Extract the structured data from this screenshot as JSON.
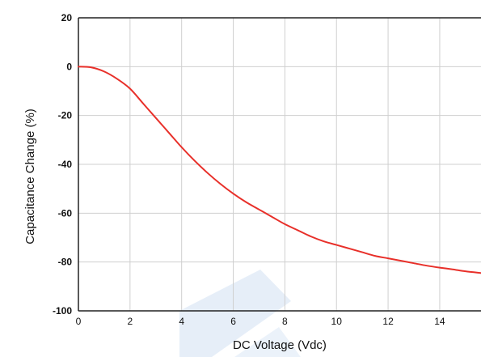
{
  "chart_data": {
    "type": "line",
    "title": "",
    "xlabel": "DC Voltage (Vdc)",
    "ylabel": "Capacitance Change (%)",
    "xlim": [
      0,
      15.6
    ],
    "ylim": [
      -100,
      20
    ],
    "xticks": [
      "0",
      "2",
      "4",
      "6",
      "8",
      "10",
      "12",
      "14"
    ],
    "yticks": [
      "20",
      "0",
      "-20",
      "-40",
      "-60",
      "-80",
      "-100"
    ],
    "grid": true,
    "legend": "none",
    "series": [
      {
        "color": "#e8302a",
        "x": [
          0,
          0.5,
          1,
          1.5,
          2,
          2.5,
          3,
          3.5,
          4,
          4.5,
          5,
          5.5,
          6,
          6.5,
          7,
          7.5,
          8,
          8.5,
          9,
          9.5,
          10,
          10.5,
          11,
          11.5,
          12,
          12.5,
          13,
          13.5,
          14,
          14.5,
          15,
          15.6
        ],
        "y": [
          0,
          -0.3,
          -2,
          -5,
          -9,
          -15,
          -21,
          -27,
          -33,
          -38.5,
          -43.5,
          -48,
          -52,
          -55.5,
          -58.5,
          -61.5,
          -64.5,
          -67,
          -69.5,
          -71.5,
          -73,
          -74.5,
          -76,
          -77.5,
          -78.5,
          -79.5,
          -80.5,
          -81.5,
          -82.3,
          -83,
          -83.8,
          -84.5
        ]
      }
    ]
  },
  "watermark": {
    "color": "#3e7dcc"
  }
}
